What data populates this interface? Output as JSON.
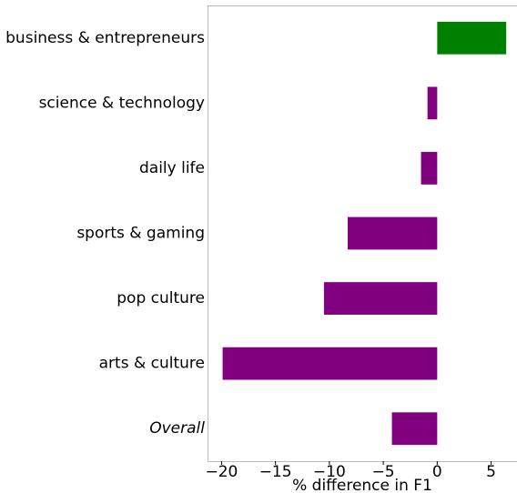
{
  "chart_data": {
    "type": "barh",
    "xlabel": "% difference in F1",
    "categories": [
      "business & entrepreneurs",
      "science & technology",
      "daily life",
      "sports & gaming",
      "pop culture",
      "arts & culture",
      "Overall"
    ],
    "values": [
      6.4,
      -0.9,
      -1.5,
      -8.3,
      -10.5,
      -19.9,
      -4.2
    ],
    "colors": [
      "#008000",
      "#800080",
      "#800080",
      "#800080",
      "#800080",
      "#800080",
      "#800080"
    ],
    "xlim": [
      -21.3,
      7.4
    ],
    "xticks": [
      {
        "value": -20,
        "label": "−20"
      },
      {
        "value": -15,
        "label": "−15"
      },
      {
        "value": -10,
        "label": "−10"
      },
      {
        "value": -5,
        "label": "−5"
      },
      0,
      5
    ]
  }
}
